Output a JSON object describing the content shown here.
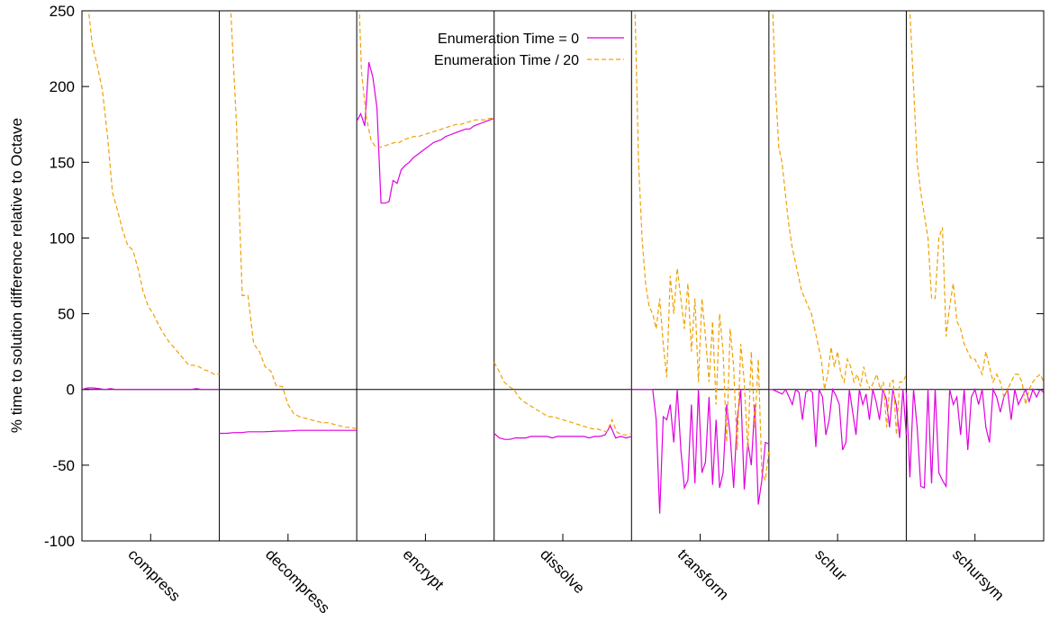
{
  "chart_data": {
    "type": "line",
    "title": "",
    "ylabel": "% time to solution difference relative to Octave",
    "xlabel": "",
    "ylim": [
      -100,
      250
    ],
    "yticks": [
      -100,
      -50,
      0,
      50,
      100,
      150,
      200,
      250
    ],
    "grid": false,
    "legend_position": "top-center",
    "zero_line": true,
    "categories": [
      "compress",
      "decompress",
      "encrypt",
      "dissolve",
      "transform",
      "schur",
      "schursym"
    ],
    "series": [
      {
        "name": "Enumeration Time = 0",
        "color": "#e000e0",
        "style": "solid",
        "panels": [
          [
            0,
            1,
            1,
            0.5,
            0,
            0.5,
            0,
            0,
            0,
            0,
            0,
            0,
            0,
            0,
            0,
            0,
            0,
            0,
            0,
            0,
            0.5,
            0,
            0,
            0,
            0
          ],
          [
            -29,
            -29,
            -28.5,
            -28.5,
            -28,
            -28,
            -28,
            -27.8,
            -27.5,
            -27.5,
            -27.3,
            -27,
            -27,
            -27,
            -27,
            -27,
            -27,
            -27,
            -27,
            -27
          ],
          [
            177,
            182,
            174,
            216,
            206,
            186,
            123,
            123,
            124,
            138,
            136,
            145,
            148,
            150,
            153,
            155,
            157,
            159,
            161,
            163,
            164,
            165,
            167,
            168,
            169,
            170,
            171,
            172,
            172,
            174,
            175,
            176,
            177,
            178,
            179
          ],
          [
            -29,
            -32,
            -33,
            -33,
            -32,
            -32,
            -32,
            -31,
            -31,
            -31,
            -31,
            -32,
            -31,
            -31,
            -31,
            -31,
            -31,
            -31,
            -32,
            -31,
            -31,
            -30,
            -24,
            -32,
            -31,
            -32,
            -31
          ],
          [
            0,
            0,
            0,
            0,
            0,
            0,
            0,
            -20,
            -82,
            -18,
            -20,
            -10,
            -35,
            0,
            -40,
            -65,
            -60,
            -10,
            -62,
            0,
            -55,
            -48,
            -5,
            -63,
            -20,
            -65,
            -55,
            -10,
            -30,
            -65,
            -20,
            0,
            -66,
            -35,
            -50,
            -10,
            -76,
            -60,
            -35,
            -36
          ],
          [
            0,
            0,
            -1,
            -2,
            -3,
            0,
            -5,
            -10,
            0,
            -2,
            -20,
            -2,
            0,
            -2,
            -38,
            0,
            -5,
            -30,
            -20,
            0,
            -4,
            -10,
            -40,
            -35,
            0,
            -15,
            -30,
            0,
            -10,
            -3,
            -20,
            0,
            -8,
            -20,
            0,
            -6,
            -25,
            0,
            -10,
            -32,
            0,
            -30
          ],
          [
            -2,
            -58,
            0,
            -25,
            -64,
            -65,
            0,
            -62,
            0,
            -55,
            -60,
            -64,
            0,
            -10,
            -5,
            -30,
            0,
            -40,
            -5,
            0,
            -10,
            0,
            -25,
            -35,
            0,
            -5,
            -15,
            -5,
            0,
            -20,
            0,
            -10,
            -5,
            0,
            -8,
            0,
            -5,
            0,
            -2
          ]
        ]
      },
      {
        "name": "Enumeration Time / 20",
        "color": "#f0a000",
        "style": "dashed",
        "panels": [
          [
            300,
            260,
            228,
            214,
            198,
            168,
            130,
            118,
            105,
            95,
            92,
            80,
            65,
            55,
            50,
            43,
            37,
            32,
            28,
            24,
            20,
            16,
            16,
            15,
            13,
            12,
            10,
            10
          ],
          [
            300,
            265,
            250,
            175,
            62,
            62,
            30,
            25,
            15,
            12,
            2,
            2,
            -10,
            -16,
            -18,
            -19,
            -20,
            -21,
            -22,
            -22,
            -23,
            -24,
            -25,
            -25,
            -26
          ],
          [
            300,
            210,
            180,
            165,
            160,
            160,
            161,
            162,
            163,
            163,
            165,
            166,
            167,
            167,
            168,
            169,
            170,
            171,
            172,
            173,
            174,
            175,
            175,
            176,
            177,
            178,
            178,
            178,
            179,
            179
          ],
          [
            18,
            12,
            5,
            2,
            0,
            -5,
            -8,
            -10,
            -12,
            -14,
            -16,
            -18,
            -18,
            -19,
            -20,
            -21,
            -22,
            -23,
            -24,
            -25,
            -26,
            -26,
            -27,
            -28,
            -20,
            -28,
            -30,
            -30,
            -29
          ],
          [
            300,
            250,
            150,
            100,
            70,
            55,
            50,
            40,
            60,
            30,
            8,
            75,
            50,
            80,
            60,
            40,
            70,
            25,
            60,
            5,
            60,
            35,
            5,
            45,
            -10,
            50,
            25,
            -35,
            40,
            15,
            -40,
            30,
            5,
            -40,
            25,
            -25,
            20,
            -55,
            -60,
            -40
          ],
          [
            300,
            260,
            200,
            160,
            150,
            130,
            110,
            95,
            85,
            75,
            65,
            60,
            55,
            50,
            40,
            30,
            20,
            0,
            10,
            28,
            15,
            25,
            10,
            5,
            20,
            15,
            5,
            10,
            2,
            15,
            5,
            0,
            5,
            10,
            0,
            5,
            -25,
            5,
            6,
            -30,
            5,
            5,
            10
          ],
          [
            300,
            250,
            200,
            150,
            130,
            115,
            100,
            60,
            60,
            100,
            107,
            35,
            55,
            70,
            45,
            40,
            30,
            25,
            20,
            20,
            15,
            10,
            25,
            15,
            5,
            10,
            5,
            -5,
            0,
            5,
            10,
            10,
            5,
            -10,
            0,
            5,
            8,
            10,
            5
          ]
        ]
      }
    ]
  }
}
